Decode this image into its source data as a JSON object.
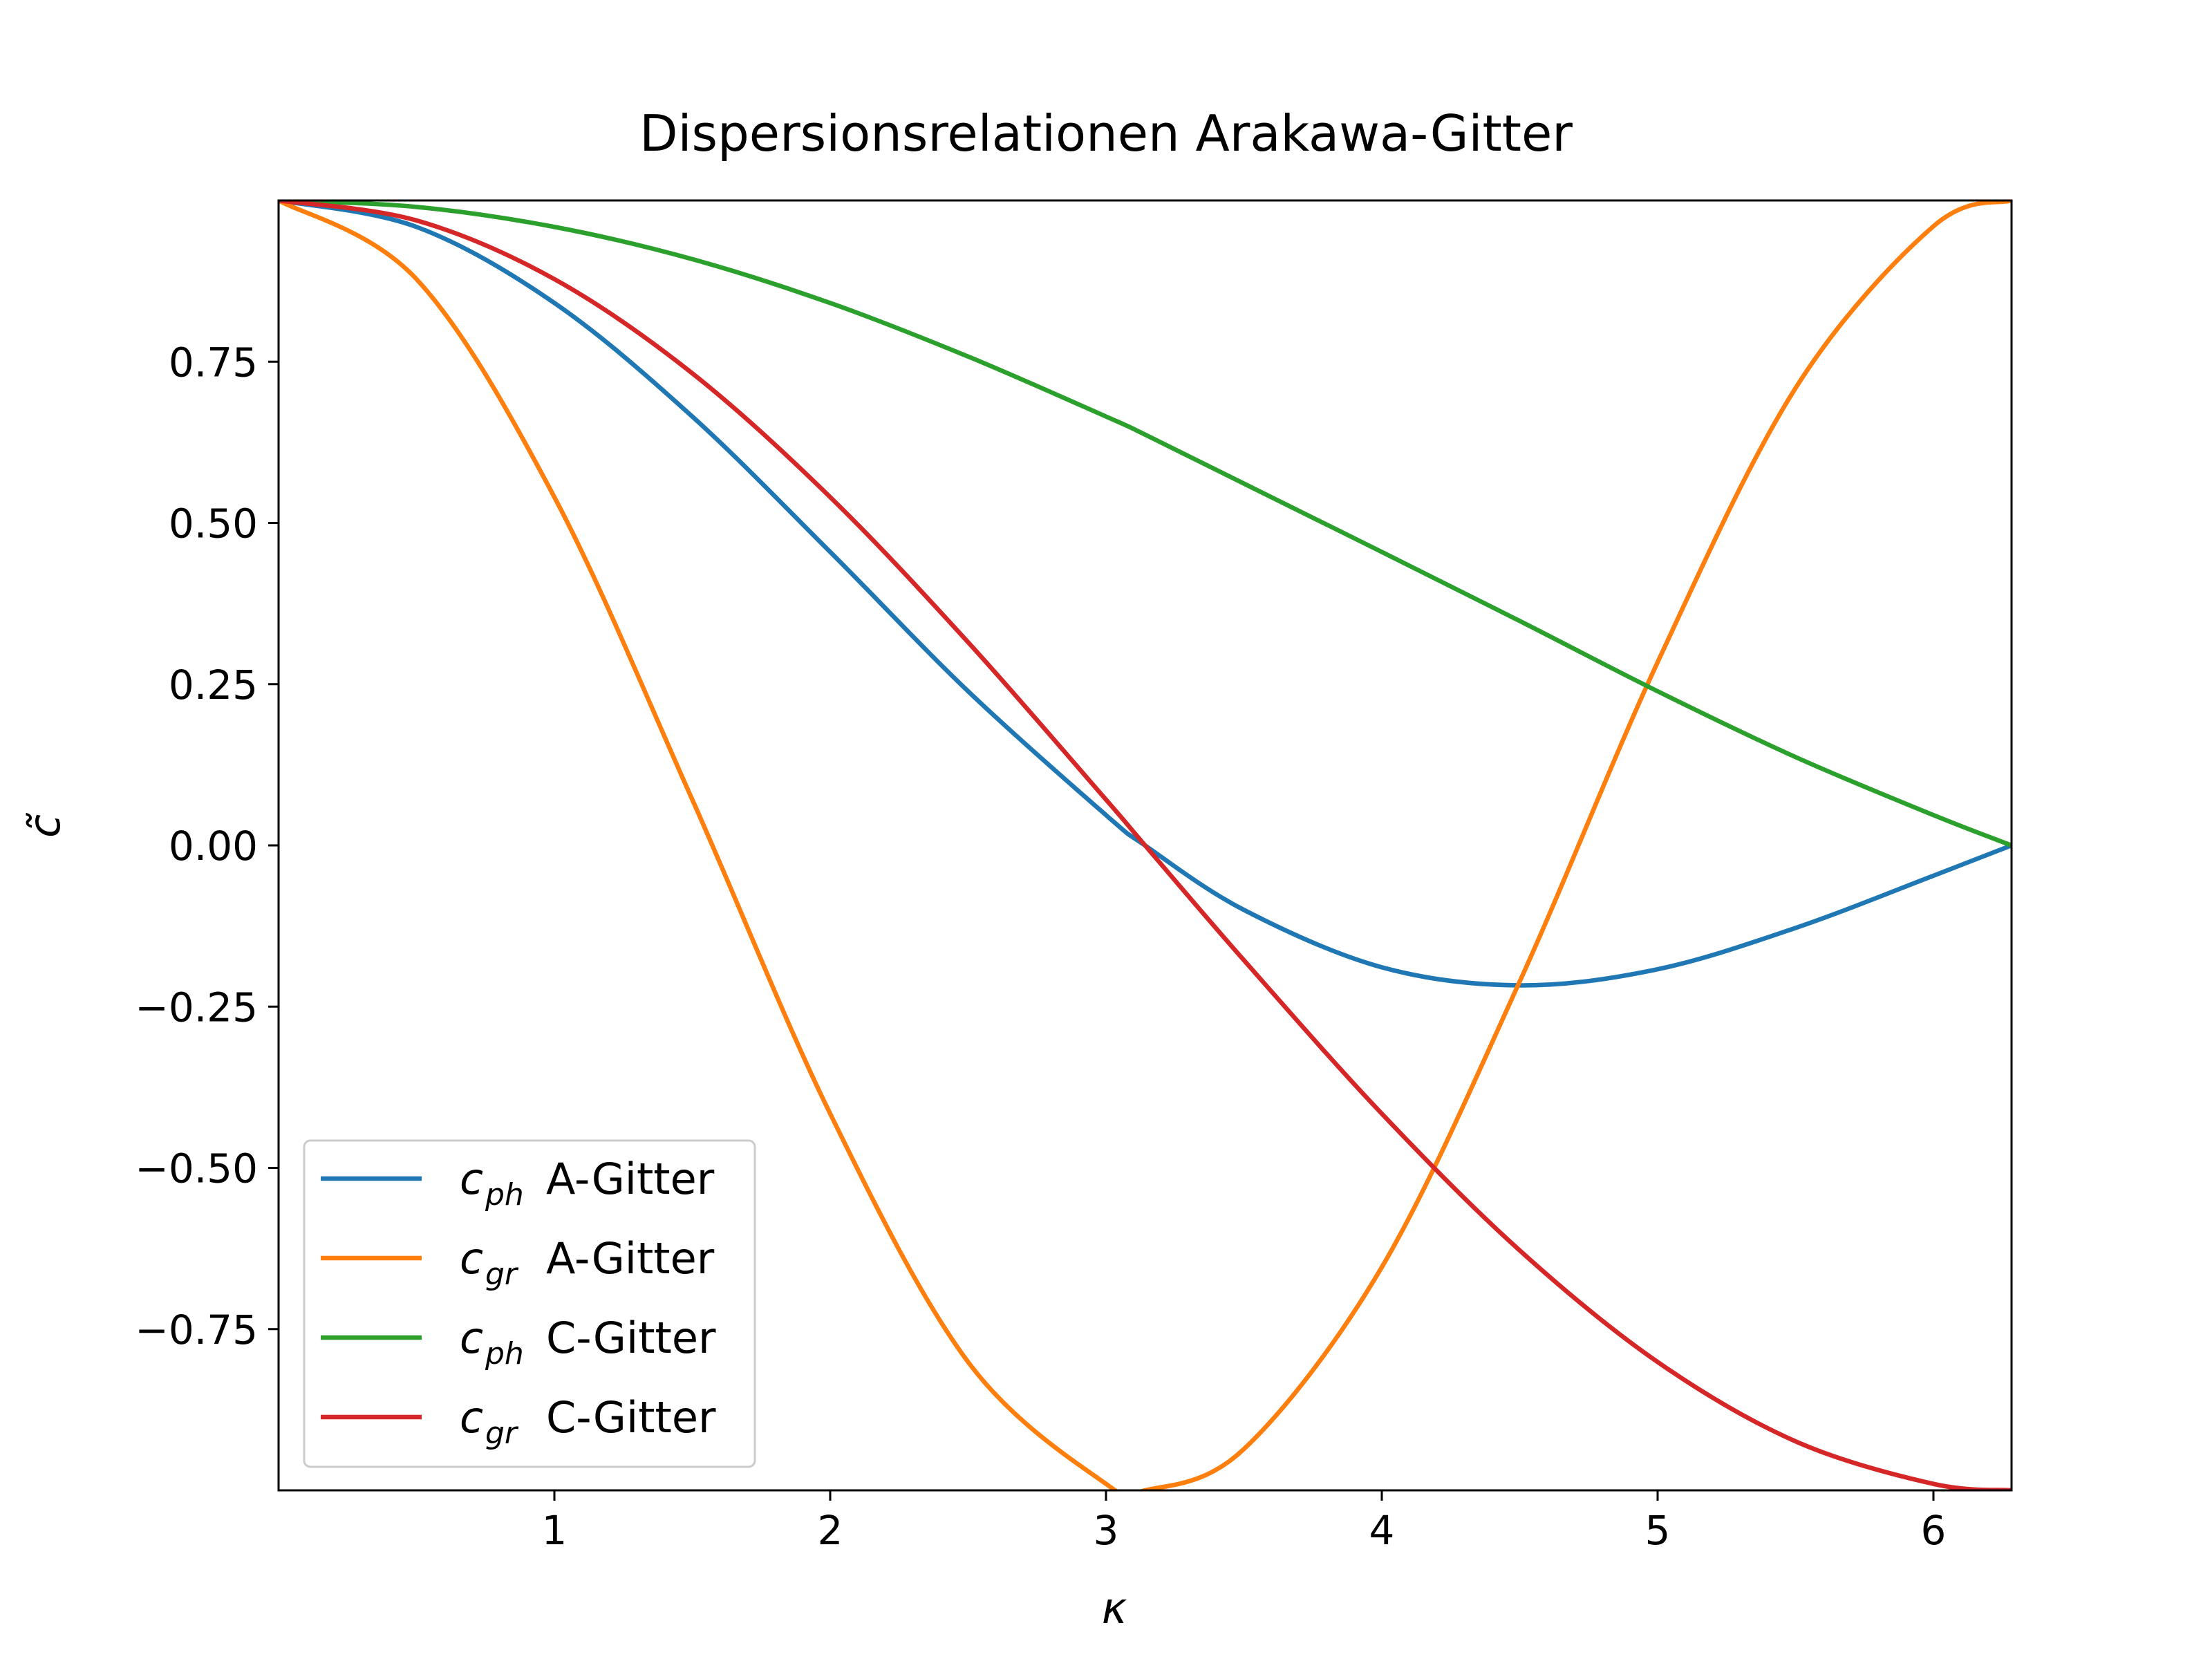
{
  "chart_data": {
    "type": "line",
    "title": "Dispersionsrelationen Arakawa-Gitter",
    "xlabel": "κ",
    "ylabel": "c̃",
    "xlim": [
      0,
      6.2832
    ],
    "ylim": [
      -1.0,
      1.0
    ],
    "xticks": [
      1,
      2,
      3,
      4,
      5,
      6
    ],
    "xtick_labels": [
      "1",
      "2",
      "3",
      "4",
      "5",
      "6"
    ],
    "yticks": [
      -0.75,
      -0.5,
      -0.25,
      0.0,
      0.25,
      0.5,
      0.75
    ],
    "ytick_labels": [
      "−0.75",
      "−0.50",
      "−0.25",
      "0.00",
      "0.25",
      "0.50",
      "0.75"
    ],
    "grid": false,
    "legend_position": "lower-left",
    "series": [
      {
        "name": "c_ph A-Gitter",
        "legend_symbol": "c",
        "legend_subscript": "ph",
        "legend_text": "A-Gitter",
        "color": "#1f77b4",
        "x": [
          0.0,
          0.5,
          1.0,
          1.5,
          2.0,
          2.5,
          3.0,
          3.1416,
          3.5,
          4.0,
          4.5,
          5.0,
          5.5,
          6.0,
          6.2832
        ],
        "y": [
          1.0,
          0.959,
          0.841,
          0.665,
          0.455,
          0.239,
          0.047,
          0.0,
          -0.1,
          -0.189,
          -0.217,
          -0.192,
          -0.128,
          -0.047,
          0.0
        ]
      },
      {
        "name": "c_gr A-Gitter",
        "legend_symbol": "c",
        "legend_subscript": "gr",
        "legend_text": "A-Gitter",
        "color": "#ff7f0e",
        "x": [
          0.0,
          0.5,
          1.0,
          1.5,
          2.0,
          2.5,
          3.0,
          3.1416,
          3.5,
          4.0,
          4.5,
          5.0,
          5.5,
          6.0,
          6.2832
        ],
        "y": [
          1.0,
          0.878,
          0.54,
          0.071,
          -0.416,
          -0.801,
          -0.99,
          -1.0,
          -0.936,
          -0.654,
          -0.211,
          0.284,
          0.709,
          0.96,
          1.0
        ]
      },
      {
        "name": "c_ph C-Gitter",
        "legend_symbol": "c",
        "legend_subscript": "ph",
        "legend_text": "C-Gitter",
        "color": "#2ca02c",
        "x": [
          0.0,
          0.5,
          1.0,
          1.5,
          2.0,
          2.5,
          3.0,
          3.1416,
          3.5,
          4.0,
          4.5,
          5.0,
          5.5,
          6.0,
          6.2832
        ],
        "y": [
          1.0,
          0.99,
          0.959,
          0.909,
          0.841,
          0.758,
          0.665,
          0.637,
          0.561,
          0.455,
          0.348,
          0.239,
          0.137,
          0.047,
          0.0
        ]
      },
      {
        "name": "c_gr C-Gitter",
        "legend_symbol": "c",
        "legend_subscript": "gr",
        "legend_text": "C-Gitter",
        "color": "#d62728",
        "x": [
          0.0,
          0.5,
          1.0,
          1.5,
          2.0,
          2.5,
          3.0,
          3.1416,
          3.5,
          4.0,
          4.5,
          5.0,
          5.5,
          6.0,
          6.2832
        ],
        "y": [
          1.0,
          0.969,
          0.878,
          0.732,
          0.54,
          0.315,
          0.071,
          0.0,
          -0.178,
          -0.416,
          -0.628,
          -0.801,
          -0.924,
          -0.99,
          -1.0
        ]
      }
    ]
  }
}
